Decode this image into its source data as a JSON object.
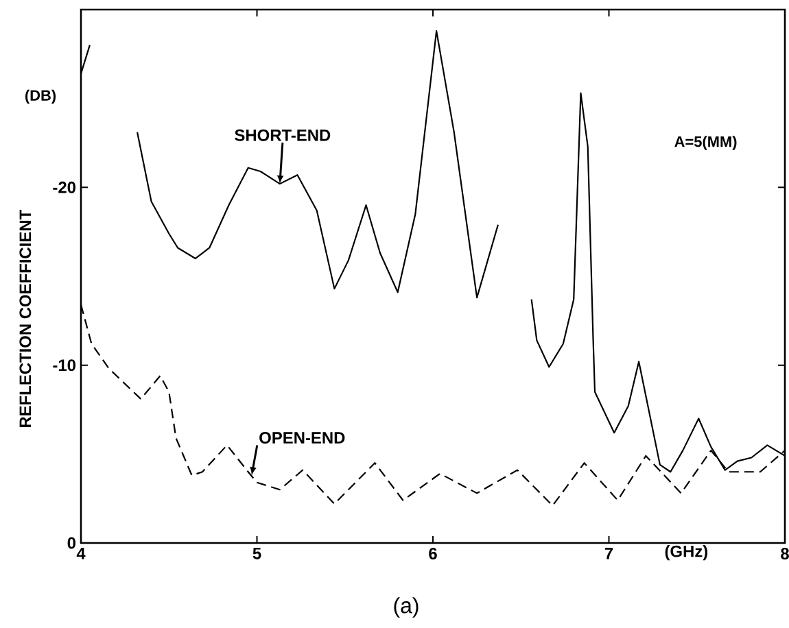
{
  "chart_data": {
    "type": "line",
    "xlabel": "(GHz)",
    "ylabel": "REFLECTION COEFFICIENT",
    "xlim": [
      4,
      8
    ],
    "ylim": [
      0,
      -30
    ],
    "xticks": [
      4,
      5,
      6,
      7,
      8
    ],
    "yticks": [
      0,
      -10,
      -20
    ],
    "series": [
      {
        "color": "#000000",
        "line_style": "solid",
        "x": [
          4.0,
          4.05,
          4.11,
          4.23,
          4.32,
          4.4,
          4.5,
          4.55,
          4.65,
          4.73,
          4.84,
          4.95,
          5.02,
          5.13,
          5.23,
          5.34,
          5.44,
          5.52,
          5.62,
          5.7,
          5.8,
          5.9,
          6.02,
          6.12,
          6.25,
          6.37,
          6.43,
          6.48,
          6.56,
          6.59,
          6.66,
          6.74,
          6.8,
          6.84,
          6.88,
          6.91,
          6.92,
          7.03,
          7.11,
          7.17,
          7.23,
          7.29,
          7.35,
          7.42,
          7.51,
          7.58,
          7.66,
          7.73,
          7.81,
          7.9,
          8.0
        ],
        "values": [
          -26.4,
          -28.0,
          null,
          null,
          -23.1,
          -19.2,
          -17.4,
          -16.6,
          -16.0,
          -16.6,
          -19.0,
          -21.1,
          -20.9,
          -20.2,
          -20.7,
          -18.7,
          -14.3,
          -15.9,
          -19.0,
          -16.3,
          -14.1,
          -18.5,
          -28.8,
          -23.1,
          -13.8,
          -17.9,
          null,
          null,
          -13.7,
          -11.4,
          -9.9,
          -11.2,
          -13.7,
          -25.3,
          -22.3,
          -11.6,
          -8.5,
          -6.2,
          -7.7,
          -10.2,
          -7.3,
          -4.4,
          -4.0,
          -5.2,
          -7.0,
          -5.4,
          -4.1,
          -4.6,
          -4.8,
          -5.5,
          -4.9
        ]
      },
      {
        "color": "#000000",
        "line_style": "dashed",
        "x": [
          4.0,
          4.06,
          4.16,
          4.34,
          4.45,
          4.5,
          4.54,
          4.63,
          4.69,
          4.83,
          4.95,
          5.0,
          5.13,
          5.26,
          5.44,
          5.67,
          5.83,
          6.04,
          6.25,
          6.48,
          6.68,
          6.86,
          7.05,
          7.21,
          7.41,
          7.58,
          7.68,
          7.86,
          8.0
        ],
        "values": [
          -13.4,
          -11.2,
          -9.8,
          -8.1,
          -9.4,
          -8.5,
          -5.9,
          -3.8,
          -4.0,
          -5.5,
          -4.0,
          -3.4,
          -3.0,
          -4.1,
          -2.2,
          -4.5,
          -2.4,
          -3.9,
          -2.8,
          -4.1,
          -2.1,
          -4.5,
          -2.4,
          -4.9,
          -2.8,
          -5.2,
          -4.0,
          -4.0,
          -5.2
        ]
      }
    ],
    "annotations": [
      {
        "text": "SHORT-END",
        "x": 5.13,
        "y": -20.2
      },
      {
        "text": "OPEN-END",
        "x": 4.97,
        "y": -3.8
      },
      "A=5(MM)",
      "(DB)",
      "(a)"
    ]
  }
}
